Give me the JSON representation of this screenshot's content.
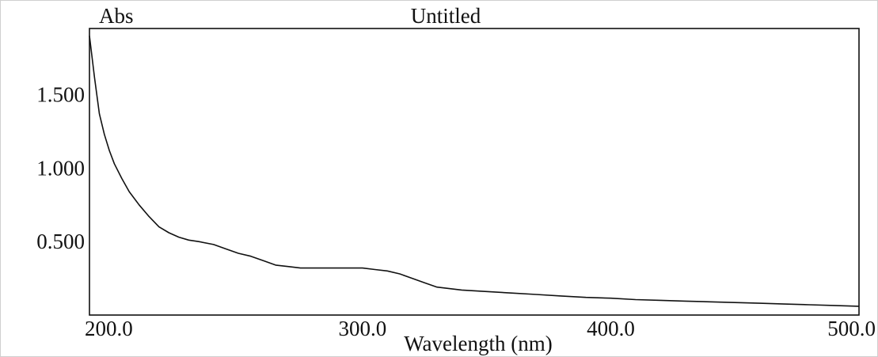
{
  "chart_data": {
    "type": "line",
    "title": "Untitled",
    "ylabel": "Abs",
    "xlabel": "Wavelength (nm)",
    "xlim": [
      190,
      500
    ],
    "ylim": [
      0.0,
      1.95
    ],
    "x_ticks": [
      {
        "value": 200,
        "label": "200.0"
      },
      {
        "value": 300,
        "label": "300.0"
      },
      {
        "value": 400,
        "label": "400.0"
      },
      {
        "value": 500,
        "label": "500.0"
      }
    ],
    "y_ticks": [
      {
        "value": 0.5,
        "label": "0.500"
      },
      {
        "value": 1.0,
        "label": "1.000"
      },
      {
        "value": 1.5,
        "label": "1.500"
      }
    ],
    "grid": false,
    "line_color": "#111111",
    "series": [
      {
        "x": [
          190,
          192,
          194,
          196,
          198,
          200,
          203,
          206,
          210,
          214,
          218,
          222,
          226,
          230,
          234,
          240,
          245,
          250,
          255,
          260,
          265,
          270,
          275,
          280,
          285,
          290,
          295,
          300,
          305,
          310,
          315,
          320,
          325,
          330,
          335,
          340,
          350,
          360,
          370,
          380,
          390,
          400,
          410,
          420,
          430,
          440,
          450,
          460,
          470,
          480,
          490,
          500
        ],
        "y": [
          1.9,
          1.62,
          1.37,
          1.23,
          1.12,
          1.03,
          0.93,
          0.84,
          0.75,
          0.67,
          0.6,
          0.56,
          0.53,
          0.51,
          0.5,
          0.48,
          0.45,
          0.42,
          0.4,
          0.37,
          0.34,
          0.33,
          0.32,
          0.32,
          0.32,
          0.32,
          0.32,
          0.32,
          0.31,
          0.3,
          0.28,
          0.25,
          0.22,
          0.19,
          0.18,
          0.17,
          0.16,
          0.15,
          0.14,
          0.13,
          0.12,
          0.115,
          0.105,
          0.1,
          0.095,
          0.09,
          0.085,
          0.08,
          0.075,
          0.07,
          0.065,
          0.06
        ]
      }
    ]
  }
}
